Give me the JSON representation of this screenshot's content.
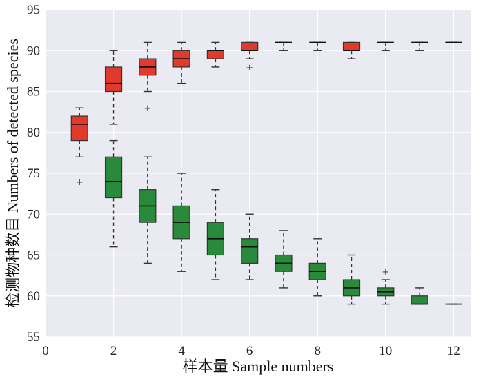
{
  "chart_data": {
    "type": "box",
    "xlabel": "样本量  Sample numbers",
    "ylabel": "检测物种数目  Numbers of detected species",
    "xlim": [
      0,
      12.5
    ],
    "ylim": [
      55,
      95
    ],
    "xticks": [
      0,
      2,
      4,
      6,
      8,
      10,
      12
    ],
    "yticks": [
      55,
      60,
      65,
      70,
      75,
      80,
      85,
      90,
      95
    ],
    "grid": true,
    "background_color": "#eaeaf2",
    "series": [
      {
        "color": "#e03a2c",
        "boxes": [
          {
            "x": 1,
            "whislo": 77,
            "q1": 79,
            "med": 81,
            "q3": 82,
            "whishi": 83,
            "fliers": [
              74
            ]
          },
          {
            "x": 2,
            "whislo": 81,
            "q1": 85,
            "med": 86,
            "q3": 88,
            "whishi": 90,
            "fliers": []
          },
          {
            "x": 3,
            "whislo": 85,
            "q1": 87,
            "med": 88,
            "q3": 89,
            "whishi": 91,
            "fliers": [
              83
            ]
          },
          {
            "x": 4,
            "whislo": 86,
            "q1": 88,
            "med": 89,
            "q3": 90,
            "whishi": 91,
            "fliers": []
          },
          {
            "x": 5,
            "whislo": 88,
            "q1": 89,
            "med": 90,
            "q3": 90,
            "whishi": 91,
            "fliers": []
          },
          {
            "x": 6,
            "whislo": 89,
            "q1": 90,
            "med": 90,
            "q3": 91,
            "whishi": 91,
            "fliers": [
              88
            ]
          },
          {
            "x": 7,
            "whislo": 90,
            "q1": 91,
            "med": 91,
            "q3": 91,
            "whishi": 91,
            "fliers": []
          },
          {
            "x": 8,
            "whislo": 90,
            "q1": 91,
            "med": 91,
            "q3": 91,
            "whishi": 91,
            "fliers": []
          },
          {
            "x": 9,
            "whislo": 89,
            "q1": 90,
            "med": 90,
            "q3": 91,
            "whishi": 91,
            "fliers": []
          },
          {
            "x": 10,
            "whislo": 90,
            "q1": 91,
            "med": 91,
            "q3": 91,
            "whishi": 91,
            "fliers": []
          },
          {
            "x": 11,
            "whislo": 90,
            "q1": 91,
            "med": 91,
            "q3": 91,
            "whishi": 91,
            "fliers": []
          },
          {
            "x": 12,
            "whislo": 91,
            "q1": 91,
            "med": 91,
            "q3": 91,
            "whishi": 91,
            "fliers": []
          }
        ]
      },
      {
        "color": "#2a8a3c",
        "boxes": [
          {
            "x": 2,
            "whislo": 66,
            "q1": 72,
            "med": 74,
            "q3": 77,
            "whishi": 79,
            "fliers": []
          },
          {
            "x": 3,
            "whislo": 64,
            "q1": 69,
            "med": 71,
            "q3": 73,
            "whishi": 77,
            "fliers": []
          },
          {
            "x": 4,
            "whislo": 63,
            "q1": 67,
            "med": 69,
            "q3": 71,
            "whishi": 75,
            "fliers": []
          },
          {
            "x": 5,
            "whislo": 62,
            "q1": 65,
            "med": 67,
            "q3": 69,
            "whishi": 73,
            "fliers": []
          },
          {
            "x": 6,
            "whislo": 62,
            "q1": 64,
            "med": 66,
            "q3": 67,
            "whishi": 70,
            "fliers": []
          },
          {
            "x": 7,
            "whislo": 61,
            "q1": 63,
            "med": 64,
            "q3": 65,
            "whishi": 68,
            "fliers": []
          },
          {
            "x": 8,
            "whislo": 60,
            "q1": 62,
            "med": 63,
            "q3": 64,
            "whishi": 67,
            "fliers": []
          },
          {
            "x": 9,
            "whislo": 59,
            "q1": 60,
            "med": 61,
            "q3": 62,
            "whishi": 65,
            "fliers": []
          },
          {
            "x": 10,
            "whislo": 59,
            "q1": 60,
            "med": 60.5,
            "q3": 61,
            "whishi": 62,
            "fliers": [
              63
            ]
          },
          {
            "x": 11,
            "whislo": 59,
            "q1": 59,
            "med": 59,
            "q3": 60,
            "whishi": 61,
            "fliers": []
          },
          {
            "x": 12,
            "whislo": 59,
            "q1": 59,
            "med": 59,
            "q3": 59,
            "whishi": 59,
            "fliers": []
          }
        ]
      }
    ]
  }
}
